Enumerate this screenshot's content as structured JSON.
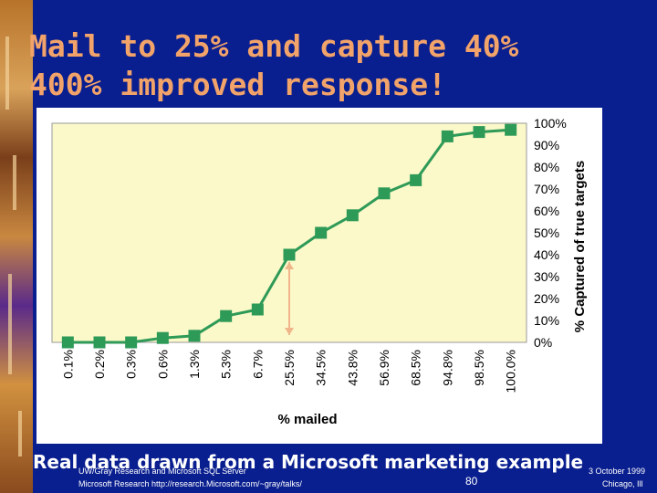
{
  "slide": {
    "title_line1": "Mail to 25% and capture 40%",
    "title_line2": "400% improved response!",
    "caption": "Real data drawn from a Microsoft marketing example",
    "footer_left_1": "UW/Gray Research and Microsoft SQL Server",
    "footer_left_2": "Microsoft Research http://research.Microsoft.com/~gray/talks/",
    "page_number": "80",
    "footer_date": "3 October 1999",
    "footer_place": "Chicago, Ill"
  },
  "chart_data": {
    "type": "line",
    "title": "",
    "xlabel": "% mailed",
    "ylabel": "% Captured of true targets",
    "x": [
      "0.1%",
      "0.2%",
      "0.3%",
      "0.6%",
      "1.3%",
      "5.3%",
      "6.7%",
      "25.5%",
      "34.5%",
      "43.8%",
      "56.9%",
      "68.5%",
      "94.8%",
      "98.5%",
      "100.0%"
    ],
    "series": [
      {
        "values": [
          0,
          0,
          0,
          2,
          3,
          12,
          15,
          40,
          50,
          58,
          68,
          74,
          94,
          96,
          97
        ]
      }
    ],
    "y_ticks": [
      "0%",
      "10%",
      "20%",
      "30%",
      "40%",
      "50%",
      "60%",
      "70%",
      "80%",
      "90%",
      "100%"
    ],
    "ylim": [
      0,
      100
    ],
    "grid": false,
    "annotation": {
      "type": "double-arrow",
      "category": "25.5%",
      "from": 0,
      "to": 40
    },
    "colors": {
      "line": "#2e9a57",
      "plot_bg": "#fbf8c9",
      "arrow": "#f0b68a"
    }
  }
}
